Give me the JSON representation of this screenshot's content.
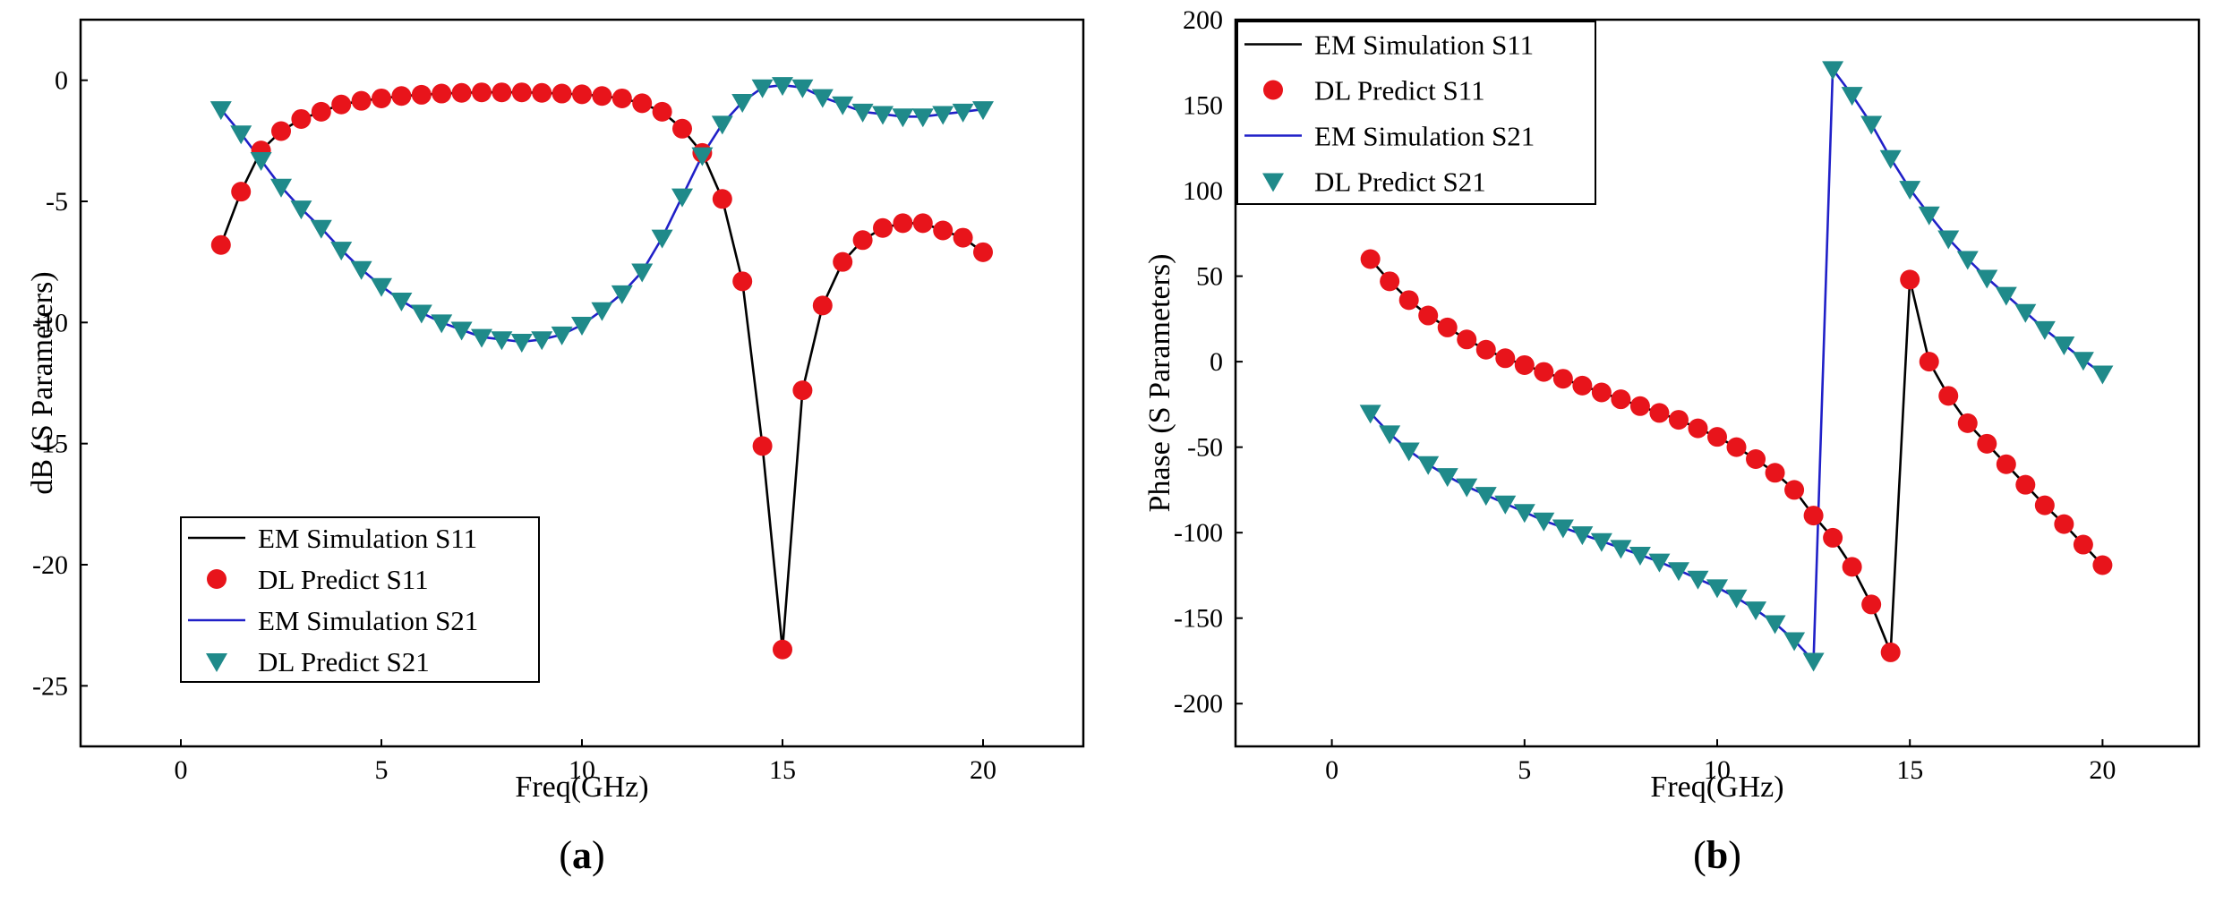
{
  "colors": {
    "em_s11": "#000000",
    "dl_s11": "#e8141b",
    "em_s21": "#2020c8",
    "dl_s21": "#1f8a8a"
  },
  "chart_data": [
    {
      "id": "a",
      "type": "line",
      "caption": {
        "open": "(",
        "letter": "a",
        "close": ")"
      },
      "xlabel": "Freq(GHz)",
      "ylabel": "dB (S Parameters)",
      "xlim": [
        -2.5,
        22.5
      ],
      "ylim": [
        -27.5,
        2.5
      ],
      "xticks": [
        0,
        5,
        10,
        15,
        20
      ],
      "yticks": [
        0,
        -5,
        -10,
        -15,
        -20,
        -25
      ],
      "legend_position": "lower-left",
      "series": [
        {
          "name": "EM Simulation S11",
          "kind": "line",
          "color_key": "em_s11",
          "x": [
            1,
            1.5,
            2,
            2.5,
            3,
            3.5,
            4,
            4.5,
            5,
            5.5,
            6,
            6.5,
            7,
            7.5,
            8,
            8.5,
            9,
            9.5,
            10,
            10.5,
            11,
            11.5,
            12,
            12.5,
            13,
            13.5,
            14,
            14.5,
            15,
            15.5,
            16,
            16.5,
            17,
            17.5,
            18,
            18.5,
            19,
            19.5,
            20
          ],
          "y": [
            -6.8,
            -4.6,
            -2.9,
            -2.1,
            -1.6,
            -1.3,
            -1.0,
            -0.85,
            -0.75,
            -0.65,
            -0.6,
            -0.55,
            -0.52,
            -0.5,
            -0.5,
            -0.5,
            -0.52,
            -0.55,
            -0.58,
            -0.65,
            -0.75,
            -0.95,
            -1.3,
            -2.0,
            -3.0,
            -4.9,
            -8.3,
            -15.1,
            -23.5,
            -12.8,
            -9.3,
            -7.5,
            -6.6,
            -6.1,
            -5.9,
            -5.9,
            -6.2,
            -6.5,
            -7.1
          ]
        },
        {
          "name": "DL Predict S11",
          "kind": "circle",
          "color_key": "dl_s11",
          "x": [
            1,
            1.5,
            2,
            2.5,
            3,
            3.5,
            4,
            4.5,
            5,
            5.5,
            6,
            6.5,
            7,
            7.5,
            8,
            8.5,
            9,
            9.5,
            10,
            10.5,
            11,
            11.5,
            12,
            12.5,
            13,
            13.5,
            14,
            14.5,
            15,
            15.5,
            16,
            16.5,
            17,
            17.5,
            18,
            18.5,
            19,
            19.5,
            20
          ],
          "y": [
            -6.8,
            -4.6,
            -2.9,
            -2.1,
            -1.6,
            -1.3,
            -1.0,
            -0.85,
            -0.75,
            -0.65,
            -0.6,
            -0.55,
            -0.52,
            -0.5,
            -0.5,
            -0.5,
            -0.52,
            -0.55,
            -0.58,
            -0.65,
            -0.75,
            -0.95,
            -1.3,
            -2.0,
            -3.0,
            -4.9,
            -8.3,
            -15.1,
            -23.5,
            -12.8,
            -9.3,
            -7.5,
            -6.6,
            -6.1,
            -5.9,
            -5.9,
            -6.2,
            -6.5,
            -7.1
          ]
        },
        {
          "name": "EM Simulation S21",
          "kind": "line",
          "color_key": "em_s21",
          "x": [
            1,
            1.5,
            2,
            2.5,
            3,
            3.5,
            4,
            4.5,
            5,
            5.5,
            6,
            6.5,
            7,
            7.5,
            8,
            8.5,
            9,
            9.5,
            10,
            10.5,
            11,
            11.5,
            12,
            12.5,
            13,
            13.5,
            14,
            14.5,
            15,
            15.5,
            16,
            16.5,
            17,
            17.5,
            18,
            18.5,
            19,
            19.5,
            20
          ],
          "y": [
            -1.2,
            -2.2,
            -3.3,
            -4.4,
            -5.3,
            -6.1,
            -7.0,
            -7.8,
            -8.5,
            -9.1,
            -9.6,
            -10.0,
            -10.3,
            -10.6,
            -10.7,
            -10.8,
            -10.7,
            -10.5,
            -10.1,
            -9.5,
            -8.8,
            -7.9,
            -6.5,
            -4.8,
            -3.1,
            -1.8,
            -0.9,
            -0.3,
            -0.2,
            -0.3,
            -0.7,
            -1.0,
            -1.3,
            -1.4,
            -1.5,
            -1.5,
            -1.4,
            -1.3,
            -1.2
          ]
        },
        {
          "name": "DL Predict S21",
          "kind": "triangle",
          "color_key": "dl_s21",
          "x": [
            1,
            1.5,
            2,
            2.5,
            3,
            3.5,
            4,
            4.5,
            5,
            5.5,
            6,
            6.5,
            7,
            7.5,
            8,
            8.5,
            9,
            9.5,
            10,
            10.5,
            11,
            11.5,
            12,
            12.5,
            13,
            13.5,
            14,
            14.5,
            15,
            15.5,
            16,
            16.5,
            17,
            17.5,
            18,
            18.5,
            19,
            19.5,
            20
          ],
          "y": [
            -1.2,
            -2.2,
            -3.3,
            -4.4,
            -5.3,
            -6.1,
            -7.0,
            -7.8,
            -8.5,
            -9.1,
            -9.6,
            -10.0,
            -10.3,
            -10.6,
            -10.7,
            -10.8,
            -10.7,
            -10.5,
            -10.1,
            -9.5,
            -8.8,
            -7.9,
            -6.5,
            -4.8,
            -3.1,
            -1.8,
            -0.9,
            -0.3,
            -0.2,
            -0.3,
            -0.7,
            -1.0,
            -1.3,
            -1.4,
            -1.5,
            -1.5,
            -1.4,
            -1.3,
            -1.2
          ]
        }
      ]
    },
    {
      "id": "b",
      "type": "line",
      "caption": {
        "open": "(",
        "letter": "b",
        "close": ")"
      },
      "xlabel": "Freq(GHz)",
      "ylabel": "Phase (S Parameters)",
      "xlim": [
        -2.5,
        22.5
      ],
      "ylim": [
        -225,
        200
      ],
      "xticks": [
        0,
        5,
        10,
        15,
        20
      ],
      "yticks": [
        200,
        150,
        100,
        50,
        0,
        -50,
        -100,
        -150,
        -200
      ],
      "legend_position": "top-left",
      "series": [
        {
          "name": "EM Simulation S11",
          "kind": "line",
          "color_key": "em_s11",
          "x": [
            1,
            1.5,
            2,
            2.5,
            3,
            3.5,
            4,
            4.5,
            5,
            5.5,
            6,
            6.5,
            7,
            7.5,
            8,
            8.5,
            9,
            9.5,
            10,
            10.5,
            11,
            11.5,
            12,
            12.5,
            13,
            13.5,
            14,
            14.5,
            15,
            15.5,
            16,
            16.5,
            17,
            17.5,
            18,
            18.5,
            19,
            19.5,
            20
          ],
          "y": [
            60,
            47,
            36,
            27,
            20,
            13,
            7,
            2,
            -2,
            -6,
            -10,
            -14,
            -18,
            -22,
            -26,
            -30,
            -34,
            -39,
            -44,
            -50,
            -57,
            -65,
            -75,
            -90,
            -103,
            -120,
            -142,
            -170,
            48,
            0,
            -20,
            -36,
            -48,
            -60,
            -72,
            -84,
            -95,
            -107,
            -119
          ]
        },
        {
          "name": "DL Predict S11",
          "kind": "circle",
          "color_key": "dl_s11",
          "x": [
            1,
            1.5,
            2,
            2.5,
            3,
            3.5,
            4,
            4.5,
            5,
            5.5,
            6,
            6.5,
            7,
            7.5,
            8,
            8.5,
            9,
            9.5,
            10,
            10.5,
            11,
            11.5,
            12,
            12.5,
            13,
            13.5,
            14,
            14.5,
            15,
            15.5,
            16,
            16.5,
            17,
            17.5,
            18,
            18.5,
            19,
            19.5,
            20
          ],
          "y": [
            60,
            47,
            36,
            27,
            20,
            13,
            7,
            2,
            -2,
            -6,
            -10,
            -14,
            -18,
            -22,
            -26,
            -30,
            -34,
            -39,
            -44,
            -50,
            -57,
            -65,
            -75,
            -90,
            -103,
            -120,
            -142,
            -170,
            48,
            0,
            -20,
            -36,
            -48,
            -60,
            -72,
            -84,
            -95,
            -107,
            -119
          ]
        },
        {
          "name": "EM Simulation S21",
          "kind": "line",
          "color_key": "em_s21",
          "x": [
            1,
            1.5,
            2,
            2.5,
            3,
            3.5,
            4,
            4.5,
            5,
            5.5,
            6,
            6.5,
            7,
            7.5,
            8,
            8.5,
            9,
            9.5,
            10,
            10.5,
            11,
            11.5,
            12,
            12.5,
            13,
            13.5,
            14,
            14.5,
            15,
            15.5,
            16,
            16.5,
            17,
            17.5,
            18,
            18.5,
            19,
            19.5,
            20
          ],
          "y": [
            -30,
            -42,
            -52,
            -60,
            -67,
            -73,
            -78,
            -83,
            -88,
            -93,
            -97,
            -101,
            -105,
            -109,
            -113,
            -117,
            -122,
            -127,
            -132,
            -138,
            -145,
            -153,
            -163,
            -175,
            171,
            156,
            139,
            119,
            101,
            86,
            72,
            60,
            49,
            39,
            29,
            19,
            10,
            1,
            -7
          ]
        },
        {
          "name": "DL Predict S21",
          "kind": "triangle",
          "color_key": "dl_s21",
          "x": [
            1,
            1.5,
            2,
            2.5,
            3,
            3.5,
            4,
            4.5,
            5,
            5.5,
            6,
            6.5,
            7,
            7.5,
            8,
            8.5,
            9,
            9.5,
            10,
            10.5,
            11,
            11.5,
            12,
            12.5,
            13,
            13.5,
            14,
            14.5,
            15,
            15.5,
            16,
            16.5,
            17,
            17.5,
            18,
            18.5,
            19,
            19.5,
            20
          ],
          "y": [
            -30,
            -42,
            -52,
            -60,
            -67,
            -73,
            -78,
            -83,
            -88,
            -93,
            -97,
            -101,
            -105,
            -109,
            -113,
            -117,
            -122,
            -127,
            -132,
            -138,
            -145,
            -153,
            -163,
            -175,
            171,
            156,
            139,
            119,
            101,
            86,
            72,
            60,
            49,
            39,
            29,
            19,
            10,
            1,
            -7
          ]
        }
      ]
    }
  ]
}
